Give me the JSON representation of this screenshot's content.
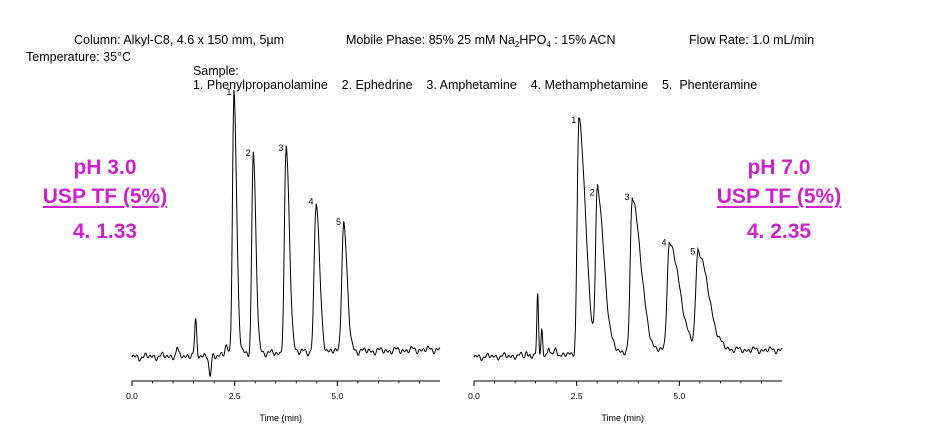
{
  "header": {
    "column_label": "Column:",
    "column_value": "Alkyl-C8, 4.6 x 150 mm, 5µm",
    "mobile_label": "Mobile Phase:",
    "mobile_part1": "85% 25 mM Na",
    "mobile_sub1": "2",
    "mobile_part2": "HPO",
    "mobile_sub2": "4",
    "mobile_part3": " : 15% ACN",
    "flow_label": "Flow Rate:",
    "flow_value": "1.0 mL/min",
    "temp_label": "Temperature:",
    "temp_value": "35°C",
    "sample_label": "Sample:",
    "sample_list": "1. Phenylpropanolamine    2. Ephedrine    3. Amphetamine    4. Methamphetamine    5.  Phenteramine"
  },
  "left_panel": {
    "ph": "pH 3.0",
    "tf_title": "USP TF (5%)",
    "tf_value": "4.  1.33"
  },
  "right_panel": {
    "ph": "pH 7.0",
    "tf_title": "USP TF (5%)",
    "tf_value": "4.  2.35"
  },
  "colors": {
    "accent": "#cc22cc",
    "trace": "#000000"
  },
  "chart_data": [
    {
      "type": "line",
      "title": "",
      "xlabel": "Time (min)",
      "ylabel": "",
      "xlim": [
        0,
        7.5
      ],
      "xticks": [
        "0.0",
        "2.5",
        "5.0"
      ],
      "baseline": 0.0,
      "peaks": [
        {
          "label": "1",
          "rt": 2.48,
          "height": 1.0,
          "width": 0.035,
          "tail": 0.015
        },
        {
          "label": "2",
          "rt": 2.95,
          "height": 0.76,
          "width": 0.035,
          "tail": 0.015
        },
        {
          "label": "3",
          "rt": 3.75,
          "height": 0.78,
          "width": 0.04,
          "tail": 0.02
        },
        {
          "label": "4",
          "rt": 4.48,
          "height": 0.57,
          "width": 0.045,
          "tail": 0.02
        },
        {
          "label": "5",
          "rt": 5.15,
          "height": 0.49,
          "width": 0.045,
          "tail": 0.02
        }
      ],
      "artifacts": [
        {
          "rt": 1.1,
          "height": 0.03,
          "width": 0.02
        },
        {
          "rt": 1.55,
          "height": 0.13,
          "width": 0.025
        },
        {
          "rt": 1.9,
          "height": -0.09,
          "width": 0.03
        },
        {
          "rt": 2.3,
          "height": 0.03,
          "width": 0.03
        }
      ]
    },
    {
      "type": "line",
      "title": "",
      "xlabel": "Time (min)",
      "ylabel": "",
      "xlim": [
        0,
        7.5
      ],
      "xticks": [
        "0.0",
        "2.5",
        "5.0"
      ],
      "baseline": 0.0,
      "peaks": [
        {
          "label": "1",
          "rt": 2.55,
          "height": 1.0,
          "width": 0.04,
          "tail": 0.06
        },
        {
          "label": "2",
          "rt": 3.0,
          "height": 0.68,
          "width": 0.04,
          "tail": 0.06
        },
        {
          "label": "3",
          "rt": 3.85,
          "height": 0.66,
          "width": 0.045,
          "tail": 0.08
        },
        {
          "label": "4",
          "rt": 4.75,
          "height": 0.46,
          "width": 0.05,
          "tail": 0.1
        },
        {
          "label": "5",
          "rt": 5.45,
          "height": 0.42,
          "width": 0.05,
          "tail": 0.1
        }
      ],
      "artifacts": [
        {
          "rt": 1.28,
          "height": 0.02,
          "width": 0.02
        },
        {
          "rt": 1.55,
          "height": 0.26,
          "width": 0.02
        },
        {
          "rt": 1.65,
          "height": 0.12,
          "width": 0.02
        },
        {
          "rt": 1.82,
          "height": 0.04,
          "width": 0.02
        },
        {
          "rt": 2.0,
          "height": 0.03,
          "width": 0.03
        }
      ]
    }
  ]
}
